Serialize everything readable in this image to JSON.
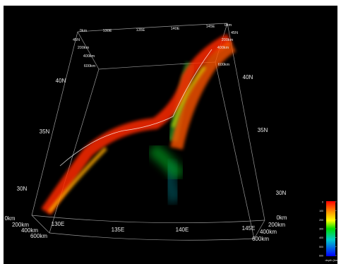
{
  "map": {
    "top_depth_labels": [
      "0km",
      "0km"
    ],
    "top_longitude_labels": [
      "130E",
      "135E",
      "140E",
      "145E"
    ],
    "left_top_labels": [
      "45N",
      "200km",
      "400km",
      "600km"
    ],
    "right_top_labels": [
      "45N",
      "200km",
      "400km",
      "600km"
    ],
    "left_latitude_labels": [
      "40N",
      "35N",
      "30N"
    ],
    "right_latitude_labels": [
      "40N",
      "35N",
      "30N"
    ],
    "left_depth_labels": [
      "0km",
      "200km",
      "400km",
      "600km"
    ],
    "right_depth_labels": [
      "0km",
      "200km",
      "400km",
      "600km"
    ],
    "bottom_longitude_labels": [
      "130E",
      "135E",
      "140E",
      "145E"
    ],
    "colorbar": {
      "ticks": [
        0,
        100,
        200,
        300,
        400,
        500,
        600
      ],
      "label": "depth (km)"
    }
  }
}
